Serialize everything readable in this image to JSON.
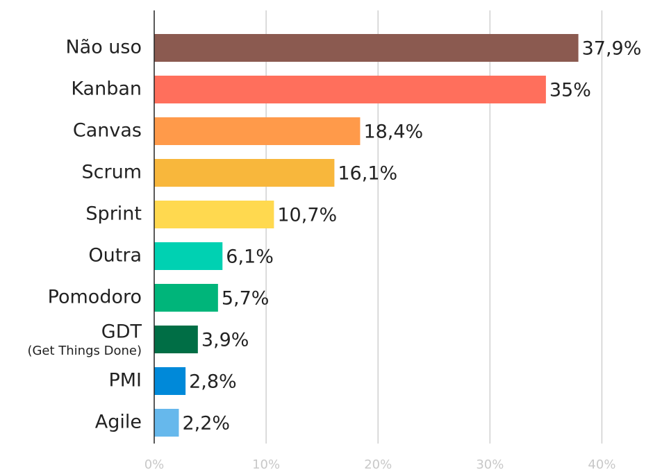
{
  "chart_data": {
    "type": "hbar",
    "categories": [
      "Não uso",
      "Kanban",
      "Canvas",
      "Scrum",
      "Sprint",
      "Outra",
      "Pomodoro",
      "GDT",
      "PMI",
      "Agile"
    ],
    "category_details": [
      null,
      null,
      null,
      null,
      null,
      null,
      null,
      "(Get Things Done)",
      null,
      null
    ],
    "values": [
      37.9,
      35,
      18.4,
      16.1,
      10.7,
      6.1,
      5.7,
      3.9,
      2.8,
      2.2
    ],
    "value_labels": [
      "37,9%",
      "35%",
      "18,4%",
      "16,1%",
      "10,7%",
      "6,1%",
      "5,7%",
      "3,9%",
      "2,8%",
      "2,2%"
    ],
    "colors": [
      "#8b5a50",
      "#ff6f5c",
      "#ff9a4a",
      "#f8b73c",
      "#ffd94f",
      "#00d1b2",
      "#00b57a",
      "#006e45",
      "#0089d9",
      "#66b8ec"
    ],
    "xlim": [
      0,
      45
    ],
    "xticks": [
      {
        "value": 0,
        "label": "0%"
      },
      {
        "value": 10,
        "label": "10%"
      },
      {
        "value": 20,
        "label": "20%"
      },
      {
        "value": 30,
        "label": "30%"
      },
      {
        "value": 40,
        "label": "40%"
      }
    ],
    "grid": true
  }
}
